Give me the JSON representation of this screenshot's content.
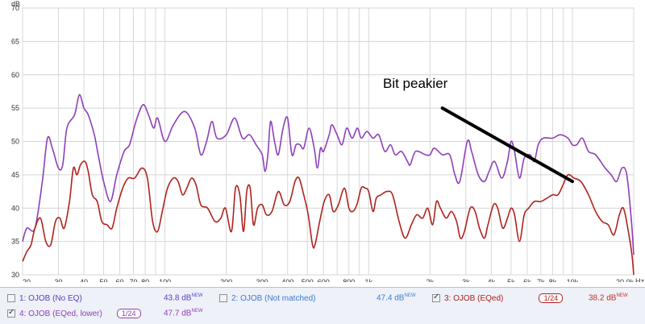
{
  "chart_data": {
    "type": "line",
    "ylabel": "dB",
    "xunit": "Hz",
    "ylim": [
      30,
      70
    ],
    "xlim": [
      20,
      20000
    ],
    "x_scale": "log",
    "grid": true,
    "y_ticks": [
      "30",
      "35",
      "40",
      "45",
      "50",
      "55",
      "60",
      "65",
      "70"
    ],
    "x_ticks": [
      {
        "v": 20,
        "l": "20"
      },
      {
        "v": 30,
        "l": "30"
      },
      {
        "v": 40,
        "l": "40"
      },
      {
        "v": 50,
        "l": "50"
      },
      {
        "v": 60,
        "l": "60"
      },
      {
        "v": 70,
        "l": "70"
      },
      {
        "v": 80,
        "l": "80"
      },
      {
        "v": 100,
        "l": "100"
      },
      {
        "v": 200,
        "l": "200"
      },
      {
        "v": 300,
        "l": "300"
      },
      {
        "v": 400,
        "l": "400"
      },
      {
        "v": 500,
        "l": "500"
      },
      {
        "v": 600,
        "l": "600"
      },
      {
        "v": 800,
        "l": "800"
      },
      {
        "v": 1000,
        "l": "1k"
      },
      {
        "v": 2000,
        "l": "2k"
      },
      {
        "v": 3000,
        "l": "3k"
      },
      {
        "v": 4000,
        "l": "4k"
      },
      {
        "v": 5000,
        "l": "5k"
      },
      {
        "v": 6000,
        "l": "6k"
      },
      {
        "v": 7000,
        "l": "7k"
      },
      {
        "v": 8000,
        "l": "8k"
      },
      {
        "v": 10000,
        "l": "10k"
      },
      {
        "v": 20000,
        "l": "20.0k"
      }
    ],
    "series": [
      {
        "name": "4: OJOB (EQed, lower)",
        "color": "#8e3fb8",
        "points": [
          [
            20,
            35
          ],
          [
            21,
            37
          ],
          [
            23,
            37
          ],
          [
            25,
            44
          ],
          [
            26.5,
            50.5
          ],
          [
            28,
            49
          ],
          [
            30,
            46
          ],
          [
            31.5,
            46.5
          ],
          [
            33,
            52
          ],
          [
            36,
            54
          ],
          [
            38,
            57
          ],
          [
            40,
            55
          ],
          [
            42,
            54
          ],
          [
            45,
            51
          ],
          [
            47,
            48
          ],
          [
            50,
            44
          ],
          [
            54,
            41
          ],
          [
            58,
            45
          ],
          [
            63,
            48.5
          ],
          [
            67,
            49.5
          ],
          [
            72,
            53
          ],
          [
            78,
            55.5
          ],
          [
            83,
            54
          ],
          [
            88,
            52
          ],
          [
            92,
            53.5
          ],
          [
            100,
            50
          ],
          [
            110,
            52.5
          ],
          [
            125,
            54.5
          ],
          [
            140,
            52
          ],
          [
            150,
            48
          ],
          [
            160,
            50
          ],
          [
            170,
            53
          ],
          [
            180,
            50.5
          ],
          [
            200,
            51
          ],
          [
            220,
            53.5
          ],
          [
            240,
            50.5
          ],
          [
            260,
            51
          ],
          [
            280,
            49.5
          ],
          [
            300,
            48
          ],
          [
            310,
            45.5
          ],
          [
            320,
            48
          ],
          [
            330,
            53
          ],
          [
            345,
            50
          ],
          [
            360,
            48
          ],
          [
            380,
            52
          ],
          [
            400,
            53.5
          ],
          [
            420,
            48
          ],
          [
            440,
            49.5
          ],
          [
            460,
            49.5
          ],
          [
            480,
            49
          ],
          [
            510,
            52
          ],
          [
            540,
            49
          ],
          [
            560,
            46
          ],
          [
            580,
            49
          ],
          [
            600,
            48.5
          ],
          [
            640,
            51
          ],
          [
            660,
            52.5
          ],
          [
            700,
            51
          ],
          [
            740,
            49.5
          ],
          [
            780,
            52
          ],
          [
            830,
            50.5
          ],
          [
            880,
            52
          ],
          [
            920,
            50.5
          ],
          [
            980,
            51.5
          ],
          [
            1050,
            50.5
          ],
          [
            1120,
            51
          ],
          [
            1200,
            48.5
          ],
          [
            1280,
            49.5
          ],
          [
            1350,
            48
          ],
          [
            1450,
            48.5
          ],
          [
            1550,
            47
          ],
          [
            1600,
            46.5
          ],
          [
            1700,
            48.5
          ],
          [
            1900,
            48
          ],
          [
            2000,
            48
          ],
          [
            2100,
            49
          ],
          [
            2300,
            48
          ],
          [
            2500,
            48
          ],
          [
            2650,
            45
          ],
          [
            2800,
            44
          ],
          [
            3050,
            50
          ],
          [
            3200,
            48.5
          ],
          [
            3450,
            45
          ],
          [
            3700,
            44
          ],
          [
            3900,
            45.5
          ],
          [
            4150,
            47
          ],
          [
            4500,
            44.5
          ],
          [
            4800,
            47
          ],
          [
            5000,
            50
          ],
          [
            5200,
            48.5
          ],
          [
            5500,
            44.5
          ],
          [
            5800,
            47.5
          ],
          [
            6200,
            48
          ],
          [
            6500,
            47
          ],
          [
            6800,
            49.5
          ],
          [
            7200,
            50.5
          ],
          [
            8000,
            50.5
          ],
          [
            8700,
            51
          ],
          [
            9500,
            50.5
          ],
          [
            10000,
            49.5
          ],
          [
            10500,
            49.5
          ],
          [
            11200,
            50.5
          ],
          [
            12000,
            48.5
          ],
          [
            13000,
            48
          ],
          [
            14500,
            46
          ],
          [
            15500,
            45
          ],
          [
            16500,
            44
          ],
          [
            17500,
            46
          ],
          [
            18500,
            45
          ],
          [
            19500,
            38
          ],
          [
            20000,
            33
          ]
        ]
      },
      {
        "name": "3: OJOB (EQed)",
        "color": "#b0221e",
        "points": [
          [
            20,
            32
          ],
          [
            21,
            33.5
          ],
          [
            22,
            34.5
          ],
          [
            23,
            37
          ],
          [
            24.5,
            38.5
          ],
          [
            26,
            35
          ],
          [
            27.5,
            34.5
          ],
          [
            29,
            38
          ],
          [
            30.5,
            38.5
          ],
          [
            32,
            37
          ],
          [
            34,
            41
          ],
          [
            35.5,
            46
          ],
          [
            37,
            45
          ],
          [
            38.5,
            46.5
          ],
          [
            40.5,
            47
          ],
          [
            42,
            45.5
          ],
          [
            44,
            42
          ],
          [
            46.5,
            41
          ],
          [
            49,
            38
          ],
          [
            52,
            37.5
          ],
          [
            55,
            37
          ],
          [
            58,
            40
          ],
          [
            62,
            43
          ],
          [
            66,
            44.5
          ],
          [
            71,
            44.5
          ],
          [
            77,
            46
          ],
          [
            82,
            44.5
          ],
          [
            87,
            38
          ],
          [
            92,
            36.5
          ],
          [
            97,
            39.5
          ],
          [
            103,
            43
          ],
          [
            110,
            44.5
          ],
          [
            116,
            44
          ],
          [
            122,
            42
          ],
          [
            128,
            43
          ],
          [
            135,
            44.5
          ],
          [
            142,
            43.5
          ],
          [
            150,
            40.5
          ],
          [
            162,
            40
          ],
          [
            176,
            38
          ],
          [
            188,
            38.5
          ],
          [
            198,
            40
          ],
          [
            212,
            36.5
          ],
          [
            222,
            43
          ],
          [
            233,
            42
          ],
          [
            243,
            36.5
          ],
          [
            252,
            42.5
          ],
          [
            262,
            43
          ],
          [
            272,
            37.5
          ],
          [
            285,
            40
          ],
          [
            300,
            40.5
          ],
          [
            315,
            39
          ],
          [
            335,
            39.5
          ],
          [
            360,
            42.5
          ],
          [
            385,
            40.5
          ],
          [
            410,
            41
          ],
          [
            435,
            44
          ],
          [
            455,
            44.5
          ],
          [
            480,
            42
          ],
          [
            505,
            39
          ],
          [
            530,
            34.5
          ],
          [
            545,
            34.5
          ],
          [
            575,
            38
          ],
          [
            605,
            41
          ],
          [
            640,
            42
          ],
          [
            670,
            39.5
          ],
          [
            710,
            40.5
          ],
          [
            760,
            43
          ],
          [
            800,
            40
          ],
          [
            835,
            39.5
          ],
          [
            875,
            40.5
          ],
          [
            920,
            43
          ],
          [
            960,
            43
          ],
          [
            1000,
            42.5
          ],
          [
            1050,
            39.5
          ],
          [
            1090,
            41.5
          ],
          [
            1150,
            42
          ],
          [
            1230,
            42.5
          ],
          [
            1310,
            42
          ],
          [
            1410,
            38
          ],
          [
            1510,
            35.5
          ],
          [
            1620,
            37.5
          ],
          [
            1720,
            39
          ],
          [
            1840,
            38.5
          ],
          [
            1950,
            40
          ],
          [
            2060,
            37.5
          ],
          [
            2150,
            41
          ],
          [
            2250,
            40
          ],
          [
            2400,
            38.5
          ],
          [
            2550,
            39.5
          ],
          [
            2700,
            38
          ],
          [
            2820,
            35.5
          ],
          [
            2950,
            36.5
          ],
          [
            3150,
            40
          ],
          [
            3330,
            39.5
          ],
          [
            3500,
            37
          ],
          [
            3700,
            35.5
          ],
          [
            3850,
            37.5
          ],
          [
            4100,
            40.5
          ],
          [
            4300,
            40
          ],
          [
            4550,
            37
          ],
          [
            4800,
            38.5
          ],
          [
            5000,
            40
          ],
          [
            5200,
            39
          ],
          [
            5500,
            35
          ],
          [
            5800,
            39
          ],
          [
            6100,
            40
          ],
          [
            6500,
            41
          ],
          [
            7000,
            41
          ],
          [
            7500,
            41.5
          ],
          [
            8000,
            42
          ],
          [
            8500,
            42
          ],
          [
            9000,
            43.5
          ],
          [
            9500,
            45
          ],
          [
            10200,
            44.5
          ],
          [
            11000,
            44
          ],
          [
            12000,
            42
          ],
          [
            13000,
            39.5
          ],
          [
            14000,
            38
          ],
          [
            15000,
            37.5
          ],
          [
            16000,
            36
          ],
          [
            17000,
            39
          ],
          [
            17800,
            40
          ],
          [
            18700,
            37
          ],
          [
            19600,
            33
          ],
          [
            20000,
            30
          ]
        ]
      }
    ],
    "annotation": {
      "text": "Bit peakier",
      "arrow_from": [
        2300,
        55
      ],
      "arrow_to": [
        10000,
        44
      ]
    }
  },
  "legend": {
    "items": [
      {
        "label": "1: OJOB (No EQ)",
        "value": "43.8 dB",
        "checked": false,
        "color": "#6a3fb0",
        "value_color": "#5a3fc0"
      },
      {
        "label": "2: OJOB (Not matched)",
        "value": "47.4 dB",
        "checked": false,
        "color": "#3d7bd6",
        "value_color": "#3d7bd6"
      },
      {
        "label": "3: OJOB (EQed)",
        "value": "38.2 dB",
        "checked": true,
        "color": "#b0221e",
        "value_color": "#c0302a",
        "smoothing": "1/24"
      },
      {
        "label": "4: OJOB (EQed, lower)",
        "value": "47.7 dB",
        "checked": true,
        "color": "#8e3fb8",
        "value_color": "#8e3fb8",
        "smoothing": "1/24"
      }
    ],
    "new_badge": "NEW"
  }
}
